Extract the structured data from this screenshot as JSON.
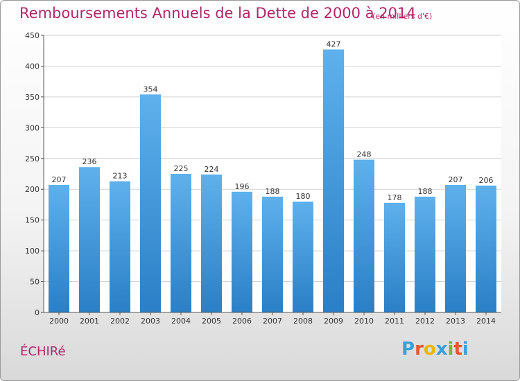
{
  "header": {
    "title": "Remboursements Annuels de la Dette de 2000 à 2014",
    "unit": "(en milliers d'€)"
  },
  "footer": {
    "city": "ÉCHIRé",
    "logo_letters": [
      "P",
      "r",
      "o",
      "x",
      "i",
      "t",
      "i"
    ],
    "logo_colors": [
      "#3aa0d8",
      "#e8552a",
      "#f0b400",
      "#3aa0d8",
      "#78b82a",
      "#e8552a",
      "#3aa0d8"
    ]
  },
  "chart_data": {
    "type": "bar",
    "categories": [
      "2000",
      "2001",
      "2002",
      "2003",
      "2004",
      "2005",
      "2006",
      "2007",
      "2008",
      "2009",
      "2010",
      "2011",
      "2012",
      "2013",
      "2014"
    ],
    "values": [
      207,
      236,
      213,
      354,
      225,
      224,
      196,
      188,
      180,
      427,
      248,
      178,
      188,
      207,
      206
    ],
    "value_labels": [
      "207",
      "236",
      "213",
      "354",
      "225",
      "224",
      "196",
      "188",
      "180",
      "427",
      "248",
      "178",
      "188",
      "207",
      "206"
    ],
    "title": "Remboursements Annuels de la Dette de 2000 à 2014",
    "ylim": [
      0,
      450
    ],
    "yticks": [
      0,
      50,
      100,
      150,
      200,
      250,
      300,
      350,
      400,
      450
    ],
    "ytick_labels": [
      "0",
      "50",
      "100",
      "150",
      "200",
      "250",
      "300",
      "350",
      "400",
      "450"
    ],
    "grid": true,
    "bar_color": "#3d93d8",
    "grid_color": "#d2d2d2"
  }
}
